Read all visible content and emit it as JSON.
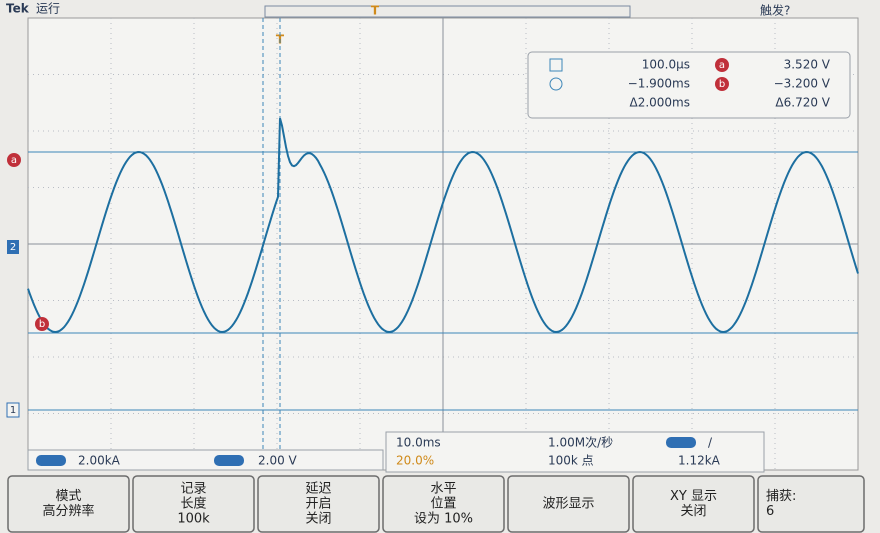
{
  "header": {
    "brand": "Tek",
    "status": "运行",
    "trigger_state": "触发?"
  },
  "cursors": {
    "marker_a": "a",
    "marker_b": "b",
    "time_a": "100.0µs",
    "time_b": "−1.900ms",
    "time_delta": "Δ2.000ms",
    "volt_a": "3.520 V",
    "volt_b": "−3.200 V",
    "volt_delta": "Δ6.720 V"
  },
  "channels": {
    "ch1": "1",
    "ch2": "2",
    "ch1_scale": "2.00kA",
    "ch2_scale": "2.00 V",
    "trigger_marker": "T"
  },
  "horizontal": {
    "scale": "10.0ms",
    "position": "20.0%",
    "sample_rate": "1.00M次/秒",
    "record": "100k 点"
  },
  "trigger": {
    "slope": "/",
    "level": "1.12kA"
  },
  "menu": [
    {
      "lines": [
        "模式",
        "高分辨率"
      ]
    },
    {
      "lines": [
        "记录",
        "长度",
        "100k"
      ]
    },
    {
      "lines": [
        "延迟",
        "开启",
        "关闭"
      ]
    },
    {
      "lines": [
        "水平",
        "位置",
        "设为 10%"
      ]
    },
    {
      "lines": [
        "波形显示"
      ]
    },
    {
      "lines": [
        "XY 显示",
        "关闭"
      ]
    },
    {
      "lines": [
        "捕获:",
        "6"
      ]
    }
  ]
}
